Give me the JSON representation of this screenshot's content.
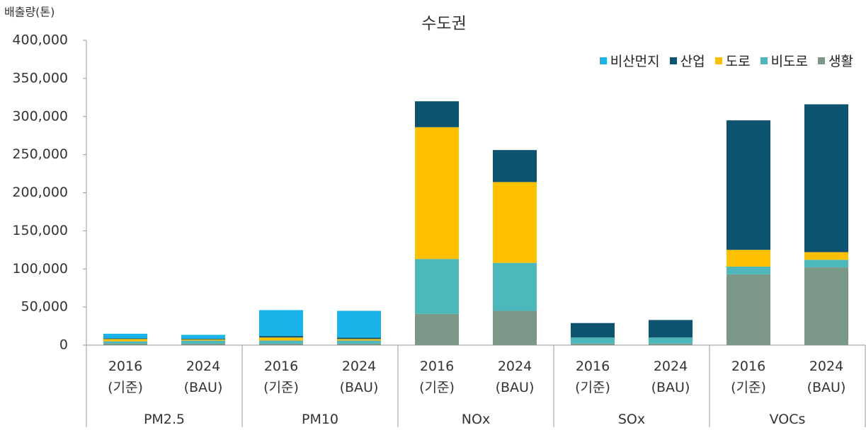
{
  "chart_data": {
    "type": "stacked-bar",
    "title": "수도권",
    "y_label": "배출량(톤)",
    "category_groups": [
      {
        "name": "PM2.5",
        "categories": [
          "2016\n(기준)",
          "2024\n(BAU)"
        ]
      },
      {
        "name": "PM10",
        "categories": [
          "2016\n(기준)",
          "2024\n(BAU)"
        ]
      },
      {
        "name": "NOx",
        "categories": [
          "2016\n(기준)",
          "2024\n(BAU)"
        ]
      },
      {
        "name": "SOx",
        "categories": [
          "2016\n(기준)",
          "2024\n(BAU)"
        ]
      },
      {
        "name": "VOCs",
        "categories": [
          "2016\n(기준)",
          "2024\n(BAU)"
        ]
      }
    ],
    "series": [
      {
        "name": "비산먼지",
        "color": "#1ab4ea",
        "values": [
          6000,
          5000,
          34000,
          35000,
          0,
          0,
          0,
          0,
          0,
          0
        ]
      },
      {
        "name": "산업",
        "color": "#0e5470",
        "values": [
          1000,
          1000,
          2000,
          2000,
          34000,
          42000,
          19000,
          23000,
          170000,
          194000
        ]
      },
      {
        "name": "도로",
        "color": "#ffc000",
        "values": [
          3000,
          1500,
          4000,
          2000,
          173000,
          106000,
          0,
          0,
          22000,
          10000
        ]
      },
      {
        "name": "비도로",
        "color": "#4db8bc",
        "values": [
          3000,
          4000,
          4000,
          4000,
          72000,
          63000,
          8000,
          8000,
          10000,
          10000
        ]
      },
      {
        "name": "생활",
        "color": "#7b9787",
        "values": [
          2000,
          2000,
          2000,
          2000,
          41000,
          45000,
          2000,
          2000,
          93000,
          102000
        ]
      }
    ],
    "ylim": [
      0,
      400000
    ],
    "yticks": [
      0,
      {
        "value": 50000,
        "label": "50,000"
      },
      {
        "value": 100000,
        "label": "100,000"
      },
      {
        "value": 150000,
        "label": "150,000"
      },
      {
        "value": 200000,
        "label": "200,000"
      },
      {
        "value": 250000,
        "label": "250,000"
      },
      {
        "value": 300000,
        "label": "300,000"
      },
      {
        "value": 350000,
        "label": "350,000"
      },
      {
        "value": 400000,
        "label": "400,000"
      }
    ],
    "legend": "top-right"
  }
}
